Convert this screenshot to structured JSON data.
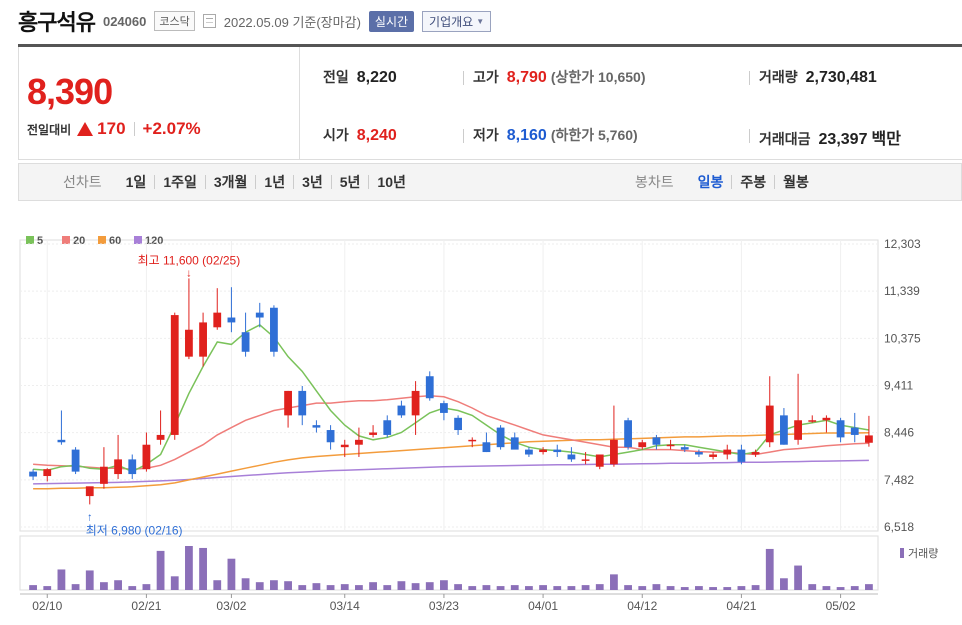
{
  "header": {
    "title": "흥구석유",
    "code": "024060",
    "market": "코스닥",
    "date": "2022.05.09",
    "date_note": "기준(장마감)",
    "realtime_label": "실시간",
    "overview_label": "기업개요"
  },
  "price": {
    "current": "8,390",
    "change_label": "전일대비",
    "change_amount": "170",
    "change_pct": "+2.07%"
  },
  "stats": {
    "prev_close": {
      "label": "전일",
      "value": "8,220"
    },
    "high": {
      "label": "고가",
      "value": "8,790",
      "limit_label": "(상한가 10,650)"
    },
    "volume": {
      "label": "거래량",
      "value": "2,730,481"
    },
    "open": {
      "label": "시가",
      "value": "8,240"
    },
    "low": {
      "label": "저가",
      "value": "8,160",
      "limit_label": "(하한가 5,760)"
    },
    "amount": {
      "label": "거래대금",
      "value": "23,397",
      "unit": "백만"
    }
  },
  "periods": {
    "line_label": "선차트",
    "line_items": [
      "1일",
      "1주일",
      "3개월",
      "1년",
      "3년",
      "5년",
      "10년"
    ],
    "candle_label": "봉차트",
    "candle_items": [
      "일봉",
      "주봉",
      "월봉"
    ],
    "candle_active": "일봉"
  },
  "colors": {
    "up": "#e0211d",
    "down": "#2f6fd6",
    "ma5": "#7ac25a",
    "ma20": "#ef7d7a",
    "ma60": "#f39c3c",
    "ma120": "#a880d8",
    "volume": "#8b6fb8"
  },
  "chart_data": {
    "type": "candlestick",
    "legend": [
      "5",
      "20",
      "60",
      "120"
    ],
    "y_ticks": [
      "12,303",
      "11,339",
      "10,375",
      "9,411",
      "8,446",
      "7,482",
      "6,518"
    ],
    "ylim": [
      6518,
      12303
    ],
    "x_ticks": [
      {
        "label": "02/10",
        "index": 1
      },
      {
        "label": "02/21",
        "index": 8
      },
      {
        "label": "03/02",
        "index": 14
      },
      {
        "label": "03/14",
        "index": 22
      },
      {
        "label": "03/23",
        "index": 29
      },
      {
        "label": "04/01",
        "index": 36
      },
      {
        "label": "04/12",
        "index": 43
      },
      {
        "label": "04/21",
        "index": 50
      },
      {
        "label": "05/02",
        "index": 57
      }
    ],
    "annotations": {
      "high": {
        "text": "최고 11,600 (02/25)",
        "index": 11,
        "value": 11600
      },
      "low": {
        "text": "최저 6,980 (02/16)",
        "index": 4,
        "value": 6980
      }
    },
    "volume_label": "거래량",
    "candles": [
      {
        "o": 7650,
        "h": 7700,
        "l": 7480,
        "c": 7550
      },
      {
        "o": 7560,
        "h": 7720,
        "l": 7450,
        "c": 7700
      },
      {
        "o": 8300,
        "h": 8900,
        "l": 8200,
        "c": 8250
      },
      {
        "o": 8100,
        "h": 8150,
        "l": 7600,
        "c": 7650
      },
      {
        "o": 7150,
        "h": 7300,
        "l": 6980,
        "c": 7350
      },
      {
        "o": 7400,
        "h": 8150,
        "l": 7300,
        "c": 7750
      },
      {
        "o": 7600,
        "h": 8400,
        "l": 7500,
        "c": 7900
      },
      {
        "o": 7900,
        "h": 8000,
        "l": 7500,
        "c": 7600
      },
      {
        "o": 7700,
        "h": 8450,
        "l": 7650,
        "c": 8200
      },
      {
        "o": 8300,
        "h": 8900,
        "l": 8200,
        "c": 8400
      },
      {
        "o": 8400,
        "h": 10900,
        "l": 8300,
        "c": 10850
      },
      {
        "o": 10000,
        "h": 11600,
        "l": 9950,
        "c": 10550
      },
      {
        "o": 10000,
        "h": 10900,
        "l": 9800,
        "c": 10700
      },
      {
        "o": 10600,
        "h": 11400,
        "l": 10550,
        "c": 10900
      },
      {
        "o": 10800,
        "h": 11420,
        "l": 10500,
        "c": 10700
      },
      {
        "o": 10500,
        "h": 10900,
        "l": 10000,
        "c": 10100
      },
      {
        "o": 10900,
        "h": 11100,
        "l": 10600,
        "c": 10800
      },
      {
        "o": 11000,
        "h": 11050,
        "l": 10000,
        "c": 10100
      },
      {
        "o": 8800,
        "h": 9300,
        "l": 8550,
        "c": 9300
      },
      {
        "o": 9300,
        "h": 9400,
        "l": 8600,
        "c": 8800
      },
      {
        "o": 8600,
        "h": 8700,
        "l": 8450,
        "c": 8550
      },
      {
        "o": 8500,
        "h": 8600,
        "l": 8100,
        "c": 8250
      },
      {
        "o": 8150,
        "h": 8300,
        "l": 7950,
        "c": 8200
      },
      {
        "o": 8200,
        "h": 8550,
        "l": 7950,
        "c": 8300
      },
      {
        "o": 8400,
        "h": 8600,
        "l": 8350,
        "c": 8450
      },
      {
        "o": 8700,
        "h": 8800,
        "l": 8350,
        "c": 8400
      },
      {
        "o": 9000,
        "h": 9100,
        "l": 8750,
        "c": 8800
      },
      {
        "o": 8800,
        "h": 9500,
        "l": 8400,
        "c": 9300
      },
      {
        "o": 9600,
        "h": 9700,
        "l": 9100,
        "c": 9150
      },
      {
        "o": 9050,
        "h": 9100,
        "l": 8700,
        "c": 8850
      },
      {
        "o": 8750,
        "h": 8800,
        "l": 8400,
        "c": 8500
      },
      {
        "o": 8300,
        "h": 8350,
        "l": 8150,
        "c": 8300
      },
      {
        "o": 8250,
        "h": 8450,
        "l": 8050,
        "c": 8050
      },
      {
        "o": 8550,
        "h": 8600,
        "l": 8100,
        "c": 8150
      },
      {
        "o": 8350,
        "h": 8450,
        "l": 8150,
        "c": 8100
      },
      {
        "o": 8100,
        "h": 8150,
        "l": 7950,
        "c": 8000
      },
      {
        "o": 8050,
        "h": 8150,
        "l": 8000,
        "c": 8100
      },
      {
        "o": 8100,
        "h": 8200,
        "l": 7950,
        "c": 8050
      },
      {
        "o": 8000,
        "h": 8150,
        "l": 7850,
        "c": 7900
      },
      {
        "o": 7900,
        "h": 8050,
        "l": 7800,
        "c": 7900
      },
      {
        "o": 7750,
        "h": 8000,
        "l": 7700,
        "c": 8000
      },
      {
        "o": 7800,
        "h": 9000,
        "l": 7750,
        "c": 8300
      },
      {
        "o": 8700,
        "h": 8750,
        "l": 8100,
        "c": 8150
      },
      {
        "o": 8150,
        "h": 8300,
        "l": 8100,
        "c": 8250
      },
      {
        "o": 8350,
        "h": 8400,
        "l": 8100,
        "c": 8200
      },
      {
        "o": 8200,
        "h": 8300,
        "l": 8100,
        "c": 8200
      },
      {
        "o": 8150,
        "h": 8200,
        "l": 8050,
        "c": 8100
      },
      {
        "o": 8050,
        "h": 8100,
        "l": 7950,
        "c": 8000
      },
      {
        "o": 7950,
        "h": 8050,
        "l": 7900,
        "c": 8000
      },
      {
        "o": 8000,
        "h": 8200,
        "l": 7900,
        "c": 8100
      },
      {
        "o": 8100,
        "h": 8200,
        "l": 7800,
        "c": 7850
      },
      {
        "o": 8000,
        "h": 8100,
        "l": 7950,
        "c": 8050
      },
      {
        "o": 8250,
        "h": 9600,
        "l": 8150,
        "c": 9000
      },
      {
        "o": 8800,
        "h": 8950,
        "l": 8200,
        "c": 8200
      },
      {
        "o": 8300,
        "h": 9650,
        "l": 8200,
        "c": 8700
      },
      {
        "o": 8700,
        "h": 8800,
        "l": 8650,
        "c": 8700
      },
      {
        "o": 8700,
        "h": 8800,
        "l": 8450,
        "c": 8750
      },
      {
        "o": 8700,
        "h": 8750,
        "l": 8250,
        "c": 8350
      },
      {
        "o": 8550,
        "h": 8850,
        "l": 8250,
        "c": 8400
      },
      {
        "o": 8240,
        "h": 8790,
        "l": 8160,
        "c": 8390
      }
    ],
    "ma5": [
      7700,
      7680,
      7750,
      7780,
      7720,
      7700,
      7780,
      7650,
      7800,
      8000,
      8600,
      9250,
      9800,
      10300,
      10250,
      10500,
      10650,
      10400,
      10000,
      9700,
      9300,
      8900,
      8600,
      8380,
      8300,
      8350,
      8450,
      8650,
      8850,
      8950,
      8900,
      8800,
      8600,
      8400,
      8250,
      8150,
      8100,
      8080,
      8050,
      8000,
      7950,
      8000,
      8050,
      8100,
      8180,
      8200,
      8200,
      8150,
      8100,
      8050,
      8000,
      8050,
      8400,
      8500,
      8600,
      8650,
      8700,
      8600,
      8550,
      8500
    ],
    "ma20": [
      7800,
      7780,
      7770,
      7760,
      7740,
      7720,
      7720,
      7700,
      7720,
      7780,
      7900,
      8050,
      8200,
      8400,
      8550,
      8700,
      8800,
      8900,
      8950,
      9000,
      9050,
      9050,
      9080,
      9100,
      9100,
      9120,
      9150,
      9180,
      9200,
      9180,
      9080,
      8950,
      8800,
      8700,
      8600,
      8500,
      8400,
      8350,
      8300,
      8250,
      8200,
      8150,
      8150,
      8100,
      8100,
      8100,
      8080,
      8060,
      8050,
      8050,
      8020,
      8000,
      8050,
      8100,
      8120,
      8150,
      8180,
      8200,
      8220,
      8230
    ],
    "ma60": [
      7300,
      7300,
      7310,
      7310,
      7320,
      7320,
      7330,
      7340,
      7360,
      7380,
      7420,
      7480,
      7540,
      7600,
      7660,
      7720,
      7780,
      7840,
      7890,
      7930,
      7960,
      7980,
      8000,
      8020,
      8040,
      8060,
      8080,
      8100,
      8120,
      8140,
      8160,
      8180,
      8200,
      8220,
      8240,
      8260,
      8270,
      8280,
      8290,
      8300,
      8300,
      8310,
      8320,
      8330,
      8340,
      8350,
      8360,
      8360,
      8370,
      8380,
      8380,
      8390,
      8400,
      8410,
      8420,
      8430,
      8440,
      8440,
      8440,
      8445
    ],
    "ma120": [
      7400,
      7405,
      7410,
      7415,
      7420,
      7425,
      7430,
      7440,
      7450,
      7460,
      7475,
      7490,
      7510,
      7530,
      7550,
      7570,
      7590,
      7610,
      7625,
      7640,
      7655,
      7670,
      7680,
      7690,
      7700,
      7710,
      7720,
      7730,
      7740,
      7750,
      7755,
      7760,
      7765,
      7770,
      7775,
      7780,
      7785,
      7790,
      7790,
      7795,
      7800,
      7800,
      7805,
      7810,
      7815,
      7820,
      7820,
      7825,
      7830,
      7835,
      7840,
      7840,
      7845,
      7850,
      7855,
      7860,
      7865,
      7870,
      7875,
      7880
    ],
    "volumes": [
      0.5,
      0.4,
      2.1,
      0.6,
      2.0,
      0.8,
      1.0,
      0.4,
      0.6,
      4.0,
      1.4,
      4.5,
      4.3,
      1.0,
      3.2,
      1.2,
      0.8,
      1.0,
      0.9,
      0.5,
      0.7,
      0.5,
      0.6,
      0.5,
      0.8,
      0.5,
      0.9,
      0.7,
      0.8,
      1.0,
      0.6,
      0.4,
      0.5,
      0.4,
      0.5,
      0.4,
      0.5,
      0.4,
      0.4,
      0.5,
      0.6,
      1.6,
      0.5,
      0.4,
      0.6,
      0.4,
      0.3,
      0.4,
      0.3,
      0.3,
      0.4,
      0.5,
      4.2,
      1.2,
      2.5,
      0.6,
      0.4,
      0.3,
      0.4,
      0.6
    ]
  }
}
